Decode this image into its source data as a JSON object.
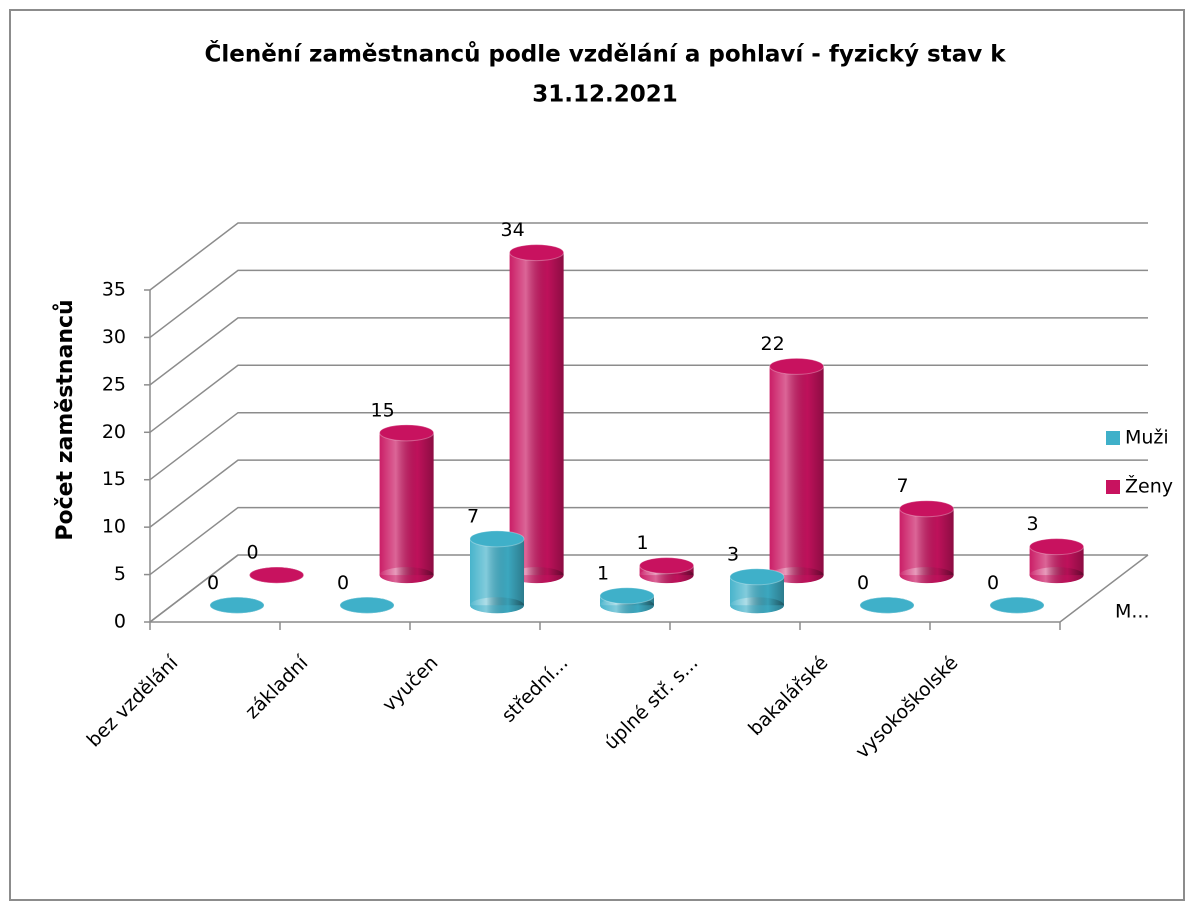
{
  "chart_data": {
    "type": "bar3d",
    "title": [
      "Členění zaměstnanců podle vzdělání a pohlaví - fyzický stav k",
      "31.12.2021"
    ],
    "y_label": "Počet zaměstnanců",
    "depth_label": "M...",
    "categories": [
      "bez vzdělání",
      "základní",
      "vyučen",
      "střední...",
      "úplné stř. s...",
      "bakalářské",
      "vysokoškolské"
    ],
    "series": [
      {
        "name": "Muži",
        "color": "#3fb0c9",
        "values": [
          0,
          0,
          7,
          1,
          3,
          0,
          0
        ]
      },
      {
        "name": "Ženy",
        "color": "#c8125f",
        "values": [
          0,
          15,
          34,
          1,
          22,
          7,
          3
        ]
      }
    ],
    "ylim": [
      0,
      35
    ],
    "yticks": [
      0,
      5,
      10,
      15,
      20,
      25,
      30,
      35
    ],
    "grid": true,
    "legend": "right",
    "data_labels": true
  }
}
